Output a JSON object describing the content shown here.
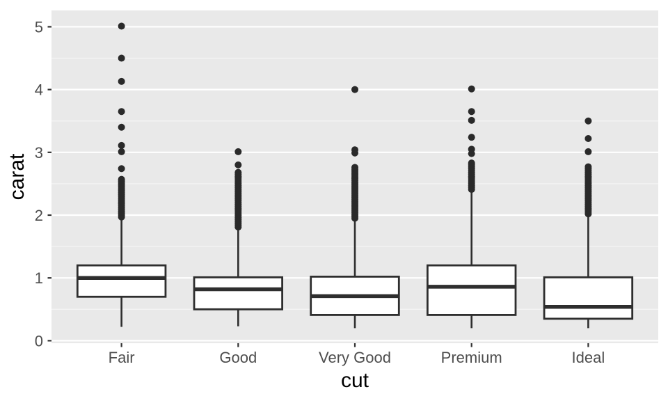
{
  "chart_data": {
    "type": "boxplot",
    "title": "",
    "xlabel": "cut",
    "ylabel": "carat",
    "categories": [
      "Fair",
      "Good",
      "Very Good",
      "Premium",
      "Ideal"
    ],
    "ylim": [
      -0.04,
      5.26
    ],
    "yticks": [
      0,
      1,
      2,
      3,
      4,
      5
    ],
    "ytick_labels": [
      "0",
      "1",
      "2",
      "3",
      "4",
      "5"
    ],
    "yticks_minor": [
      0.5,
      1.5,
      2.5,
      3.5,
      4.5
    ],
    "grid": "major-and-minor",
    "legend": "none",
    "boxes": [
      {
        "category": "Fair",
        "whisker_low": 0.22,
        "q1": 0.7,
        "median": 1.0,
        "q3": 1.2,
        "whisker_high": 1.95,
        "outliers": [
          5.01,
          4.5,
          4.13,
          3.65,
          3.4,
          3.11,
          3.01,
          2.74,
          2.57,
          2.54,
          2.51,
          2.48,
          2.45,
          2.42,
          2.39,
          2.36,
          2.33,
          2.3,
          2.27,
          2.24,
          2.21,
          2.18,
          2.15,
          2.12,
          2.09,
          2.06,
          2.03,
          2.0,
          1.97
        ]
      },
      {
        "category": "Good",
        "whisker_low": 0.23,
        "q1": 0.5,
        "median": 0.82,
        "q3": 1.01,
        "whisker_high": 1.78,
        "outliers": [
          3.01,
          2.8,
          2.68,
          2.65,
          2.62,
          2.59,
          2.56,
          2.53,
          2.5,
          2.47,
          2.44,
          2.41,
          2.38,
          2.35,
          2.32,
          2.29,
          2.26,
          2.23,
          2.2,
          2.17,
          2.14,
          2.11,
          2.08,
          2.05,
          2.02,
          1.99,
          1.96,
          1.93,
          1.9,
          1.87,
          1.84,
          1.81
        ]
      },
      {
        "category": "Very Good",
        "whisker_low": 0.2,
        "q1": 0.41,
        "median": 0.71,
        "q3": 1.02,
        "whisker_high": 1.92,
        "outliers": [
          4.0,
          3.04,
          2.99,
          2.76,
          2.73,
          2.7,
          2.67,
          2.64,
          2.61,
          2.58,
          2.55,
          2.52,
          2.49,
          2.46,
          2.43,
          2.4,
          2.37,
          2.34,
          2.31,
          2.28,
          2.25,
          2.22,
          2.19,
          2.16,
          2.13,
          2.1,
          2.07,
          2.04,
          2.01,
          1.98,
          1.95
        ]
      },
      {
        "category": "Premium",
        "whisker_low": 0.2,
        "q1": 0.41,
        "median": 0.86,
        "q3": 1.2,
        "whisker_high": 2.38,
        "outliers": [
          4.01,
          3.65,
          3.51,
          3.24,
          3.05,
          2.98,
          2.83,
          2.8,
          2.77,
          2.74,
          2.71,
          2.68,
          2.65,
          2.62,
          2.59,
          2.56,
          2.53,
          2.5,
          2.47,
          2.44,
          2.41
        ]
      },
      {
        "category": "Ideal",
        "whisker_low": 0.2,
        "q1": 0.35,
        "median": 0.54,
        "q3": 1.01,
        "whisker_high": 2.0,
        "outliers": [
          3.5,
          3.22,
          3.01,
          2.77,
          2.74,
          2.71,
          2.68,
          2.65,
          2.62,
          2.59,
          2.56,
          2.53,
          2.5,
          2.47,
          2.44,
          2.41,
          2.38,
          2.35,
          2.32,
          2.29,
          2.26,
          2.23,
          2.2,
          2.17,
          2.14,
          2.11,
          2.08,
          2.05,
          2.02
        ]
      }
    ],
    "colors": {
      "panel_bg": "#E9E9E9",
      "grid_major": "#FFFFFF",
      "grid_minor": "#F4F4F4",
      "box_stroke": "#2E2E2E",
      "box_fill": "#FFFFFF",
      "outlier": "#2A2A2A",
      "tick_mark": "#333333",
      "tick_text": "#4D4D4D",
      "axis_title_text": "#000000"
    }
  }
}
